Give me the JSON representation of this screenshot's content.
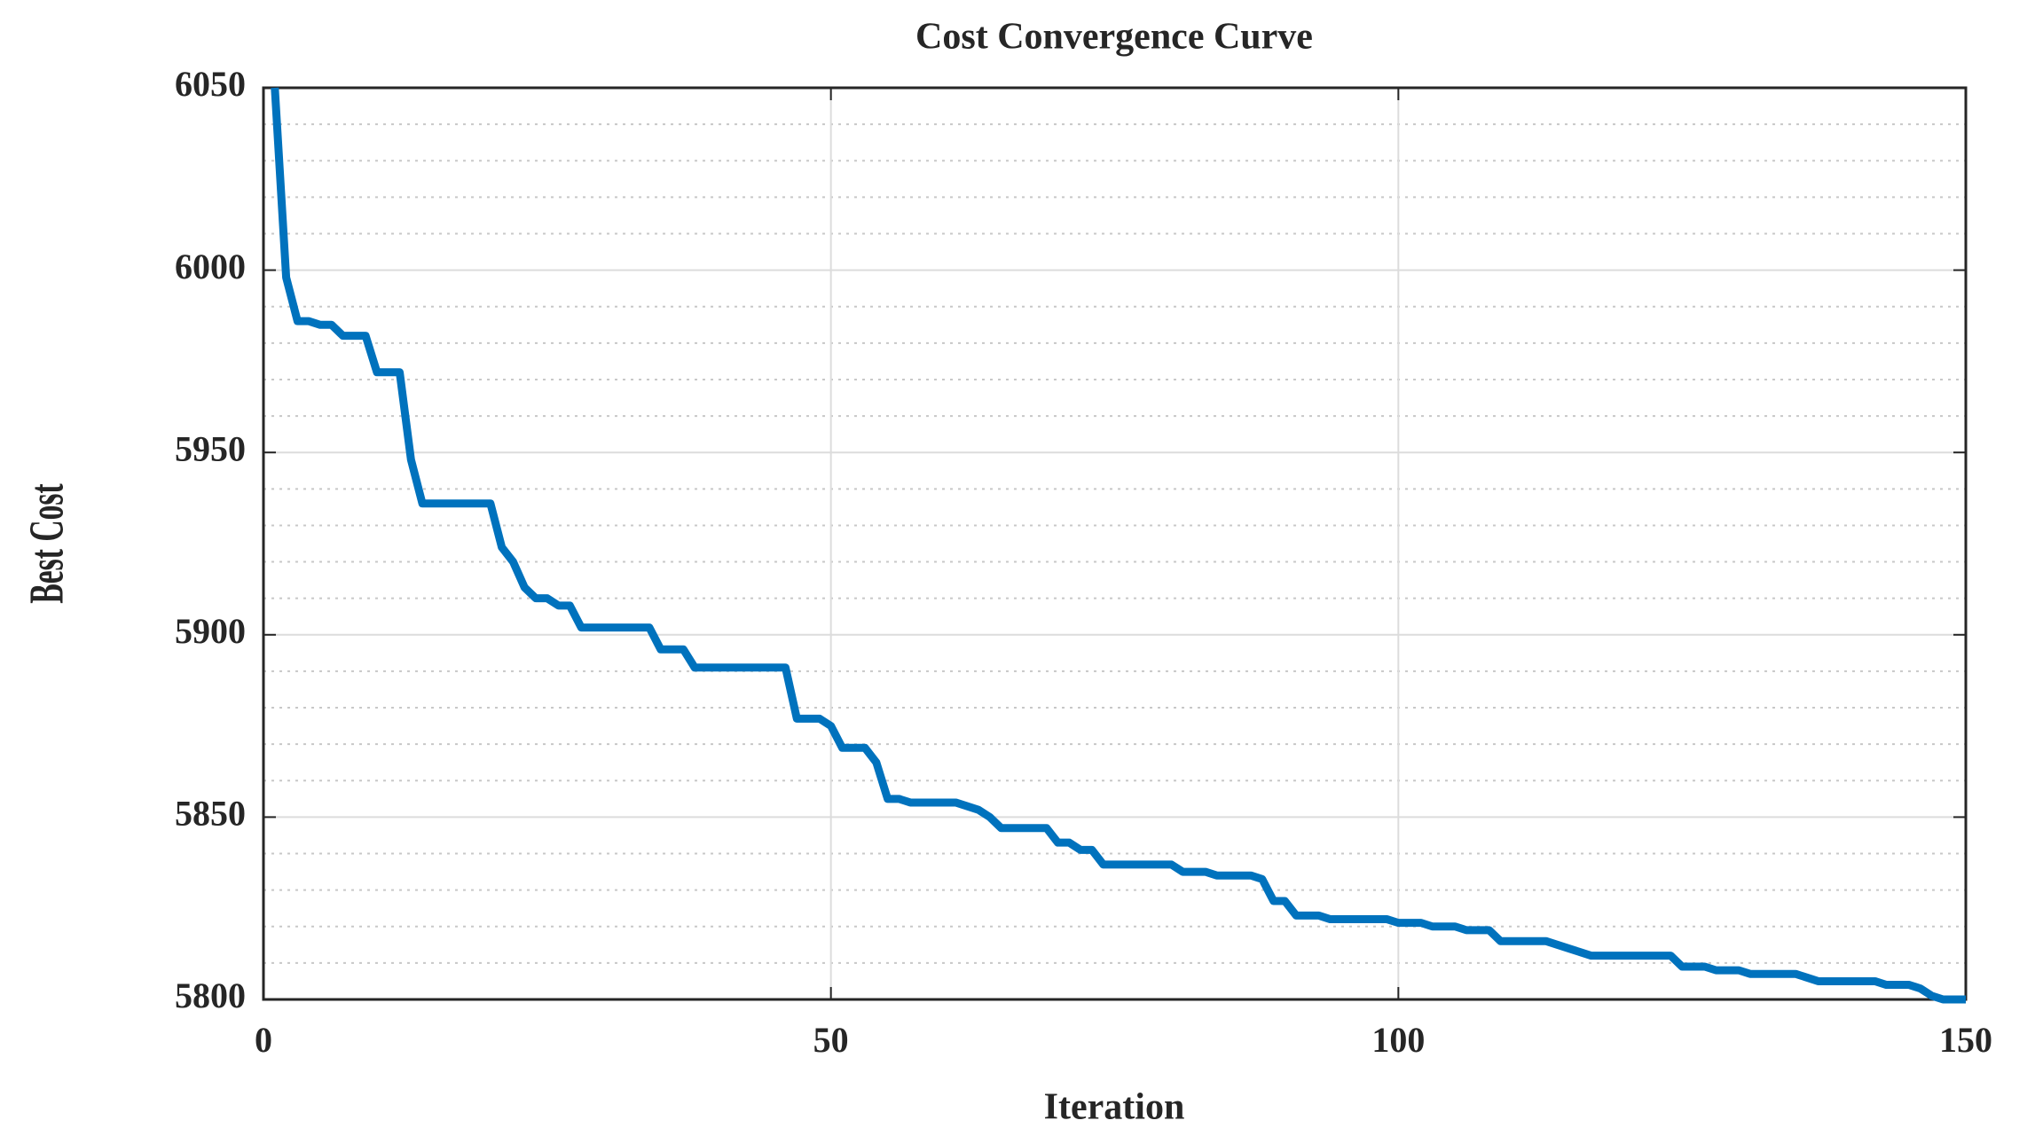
{
  "chart_data": {
    "type": "line",
    "title": "Cost Convergence Curve",
    "x_label": "Iteration",
    "y_label": "Best Cost",
    "x": [
      1,
      2,
      3,
      4,
      5,
      6,
      7,
      8,
      9,
      10,
      11,
      12,
      13,
      14,
      15,
      16,
      17,
      18,
      19,
      20,
      21,
      22,
      23,
      24,
      25,
      26,
      27,
      28,
      29,
      30,
      31,
      32,
      33,
      34,
      35,
      36,
      37,
      38,
      39,
      40,
      41,
      42,
      43,
      44,
      45,
      46,
      47,
      48,
      49,
      50,
      51,
      52,
      53,
      54,
      55,
      56,
      57,
      58,
      59,
      60,
      61,
      62,
      63,
      64,
      65,
      66,
      67,
      68,
      69,
      70,
      71,
      72,
      73,
      74,
      75,
      76,
      77,
      78,
      79,
      80,
      81,
      82,
      83,
      84,
      85,
      86,
      87,
      88,
      89,
      90,
      91,
      92,
      93,
      94,
      95,
      96,
      97,
      98,
      99,
      100,
      101,
      102,
      103,
      104,
      105,
      106,
      107,
      108,
      109,
      110,
      111,
      112,
      113,
      114,
      115,
      116,
      117,
      118,
      119,
      120,
      121,
      122,
      123,
      124,
      125,
      126,
      127,
      128,
      129,
      130,
      131,
      132,
      133,
      134,
      135,
      136,
      137,
      138,
      139,
      140,
      141,
      142,
      143,
      144,
      145,
      146,
      147,
      148,
      149,
      150
    ],
    "values": [
      6050,
      5998,
      5986,
      5986,
      5985,
      5985,
      5982,
      5982,
      5982,
      5972,
      5972,
      5972,
      5948,
      5936,
      5936,
      5936,
      5936,
      5936,
      5936,
      5936,
      5924,
      5920,
      5913,
      5910,
      5910,
      5908,
      5908,
      5902,
      5902,
      5902,
      5902,
      5902,
      5902,
      5902,
      5896,
      5896,
      5896,
      5891,
      5891,
      5891,
      5891,
      5891,
      5891,
      5891,
      5891,
      5891,
      5877,
      5877,
      5877,
      5875,
      5869,
      5869,
      5869,
      5865,
      5855,
      5855,
      5854,
      5854,
      5854,
      5854,
      5854,
      5853,
      5852,
      5850,
      5847,
      5847,
      5847,
      5847,
      5847,
      5843,
      5843,
      5841,
      5841,
      5837,
      5837,
      5837,
      5837,
      5837,
      5837,
      5837,
      5835,
      5835,
      5835,
      5834,
      5834,
      5834,
      5834,
      5833,
      5827,
      5827,
      5823,
      5823,
      5823,
      5822,
      5822,
      5822,
      5822,
      5822,
      5822,
      5821,
      5821,
      5821,
      5820,
      5820,
      5820,
      5819,
      5819,
      5819,
      5816,
      5816,
      5816,
      5816,
      5816,
      5815,
      5814,
      5813,
      5812,
      5812,
      5812,
      5812,
      5812,
      5812,
      5812,
      5812,
      5809,
      5809,
      5809,
      5808,
      5808,
      5808,
      5807,
      5807,
      5807,
      5807,
      5807,
      5806,
      5805,
      5805,
      5805,
      5805,
      5805,
      5805,
      5804,
      5804,
      5804,
      5803,
      5801,
      5800,
      5800,
      5800
    ],
    "color": "#0072bd",
    "xlim": [
      0,
      150
    ],
    "xticks": [
      0,
      50,
      100,
      150
    ],
    "ylim": [
      5800,
      6050
    ],
    "yticks": [
      5800,
      5850,
      5900,
      5950,
      6000,
      6050
    ],
    "grid": true,
    "minor_grid": true
  }
}
